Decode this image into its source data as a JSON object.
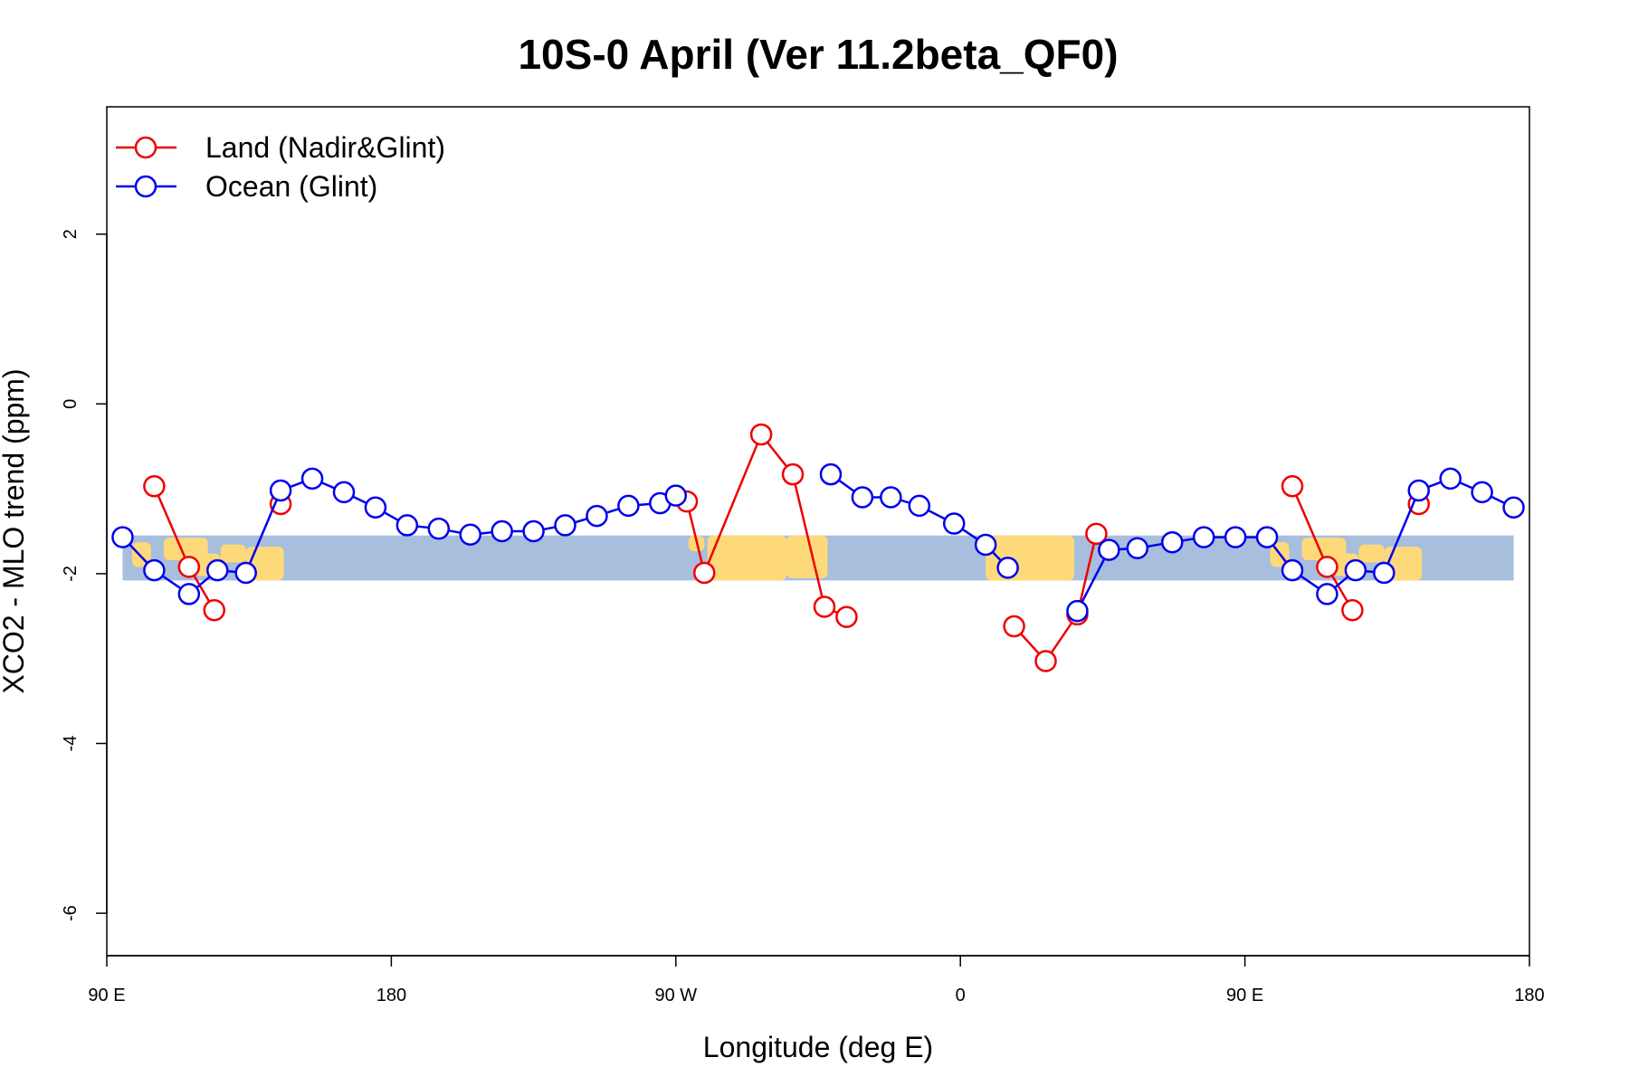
{
  "chart_data": {
    "type": "line",
    "title": "10S-0 April (Ver 11.2beta_QF0)",
    "xlabel": "Longitude (deg E)",
    "ylabel": "XCO2 - MLO trend (ppm)",
    "xlim": [
      90,
      540
    ],
    "ylim": [
      -6.5,
      3.5
    ],
    "x_ticks": [
      {
        "value": 90,
        "label": "90 E"
      },
      {
        "value": 180,
        "label": "180"
      },
      {
        "value": 270,
        "label": "90 W"
      },
      {
        "value": 360,
        "label": "0"
      },
      {
        "value": 450,
        "label": "90 E"
      },
      {
        "value": 540,
        "label": "180"
      }
    ],
    "y_ticks": [
      {
        "value": 2,
        "label": "2"
      },
      {
        "value": 0,
        "label": "0"
      },
      {
        "value": -2,
        "label": "-2"
      },
      {
        "value": -4,
        "label": "-4"
      },
      {
        "value": -6,
        "label": "-6"
      }
    ],
    "map_band": {
      "y_range": [
        -2.08,
        -1.55
      ],
      "ocean_color": "#a8bedd",
      "land_color": "#fdd97a"
    },
    "legend": {
      "position": "top-left"
    },
    "series": [
      {
        "name": "Land (Nadir&Glint)",
        "color": "#ee0000",
        "segments": [
          [
            [
              105,
              -0.97
            ],
            [
              116,
              -1.92
            ],
            [
              124,
              -2.43
            ]
          ],
          [
            [
              145,
              -1.18
            ]
          ],
          [
            [
              273.5,
              -1.15
            ],
            [
              279,
              -1.99
            ],
            [
              297,
              -0.36
            ],
            [
              307,
              -0.83
            ],
            [
              317,
              -2.39
            ],
            [
              324,
              -2.51
            ]
          ],
          [
            [
              377,
              -2.62
            ],
            [
              387,
              -3.03
            ],
            [
              397,
              -2.48
            ],
            [
              403,
              -1.53
            ]
          ],
          [
            [
              465,
              -0.97
            ],
            [
              476,
              -1.92
            ],
            [
              484,
              -2.43
            ]
          ],
          [
            [
              505,
              -1.18
            ]
          ]
        ]
      },
      {
        "name": "Ocean (Glint)",
        "color": "#0000ee",
        "segments": [
          [
            [
              95,
              -1.57
            ],
            [
              105,
              -1.96
            ],
            [
              116,
              -2.24
            ],
            [
              125,
              -1.96
            ],
            [
              134,
              -1.99
            ],
            [
              145,
              -1.02
            ],
            [
              155,
              -0.88
            ],
            [
              165,
              -1.04
            ],
            [
              175,
              -1.22
            ],
            [
              185,
              -1.43
            ],
            [
              195,
              -1.47
            ],
            [
              205,
              -1.54
            ],
            [
              215,
              -1.5
            ],
            [
              225,
              -1.5
            ],
            [
              235,
              -1.43
            ],
            [
              245,
              -1.32
            ],
            [
              255,
              -1.2
            ],
            [
              265,
              -1.17
            ],
            [
              270,
              -1.08
            ]
          ],
          [
            [
              319,
              -0.83
            ],
            [
              329,
              -1.1
            ],
            [
              338,
              -1.1
            ],
            [
              347,
              -1.2
            ],
            [
              358,
              -1.41
            ],
            [
              368,
              -1.66
            ],
            [
              375,
              -1.93
            ]
          ],
          [
            [
              397,
              -2.44
            ],
            [
              407,
              -1.72
            ],
            [
              416,
              -1.7
            ],
            [
              427,
              -1.63
            ],
            [
              437,
              -1.57
            ],
            [
              447,
              -1.57
            ],
            [
              457,
              -1.57
            ],
            [
              465,
              -1.96
            ],
            [
              476,
              -2.24
            ],
            [
              485,
              -1.96
            ],
            [
              494,
              -1.99
            ],
            [
              505,
              -1.02
            ],
            [
              515,
              -0.88
            ],
            [
              525,
              -1.04
            ],
            [
              535,
              -1.22
            ]
          ]
        ]
      }
    ]
  }
}
